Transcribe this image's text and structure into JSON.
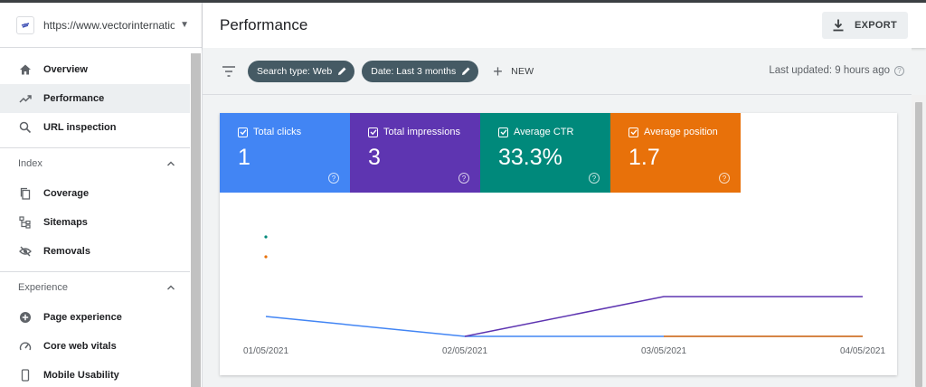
{
  "property": {
    "url": "https://www.vectorinternatio..."
  },
  "sidebar": {
    "items": [
      {
        "label": "Overview",
        "icon": "home-icon"
      },
      {
        "label": "Performance",
        "icon": "trending-up-icon"
      },
      {
        "label": "URL inspection",
        "icon": "search-icon"
      }
    ],
    "index_section": "Index",
    "index_items": [
      {
        "label": "Coverage",
        "icon": "copy-icon"
      },
      {
        "label": "Sitemaps",
        "icon": "sitemap-icon"
      },
      {
        "label": "Removals",
        "icon": "eye-off-icon"
      }
    ],
    "experience_section": "Experience",
    "experience_items": [
      {
        "label": "Page experience",
        "icon": "add-circle-icon"
      },
      {
        "label": "Core web vitals",
        "icon": "speed-icon"
      },
      {
        "label": "Mobile Usability",
        "icon": "phone-icon"
      }
    ]
  },
  "header": {
    "title": "Performance",
    "export_label": "EXPORT"
  },
  "filters": {
    "chips": [
      "Search type: Web",
      "Date: Last 3 months"
    ],
    "new_label": "NEW",
    "last_updated": "Last updated: 9 hours ago"
  },
  "metrics": [
    {
      "label": "Total clicks",
      "value": "1",
      "color": "#4285f4"
    },
    {
      "label": "Total impressions",
      "value": "3",
      "color": "#5e35b1"
    },
    {
      "label": "Average CTR",
      "value": "33.3%",
      "color": "#00897b"
    },
    {
      "label": "Average position",
      "value": "1.7",
      "color": "#e8710a"
    }
  ],
  "chart_data": {
    "type": "line",
    "categories": [
      "01/05/2021",
      "02/05/2021",
      "03/05/2021",
      "04/05/2021"
    ],
    "series": [
      {
        "metric": "Total clicks",
        "color": "#4285f4",
        "values": [
          1,
          0,
          0,
          0
        ]
      },
      {
        "metric": "Total impressions",
        "color": "#5e35b1",
        "values": [
          null,
          0,
          1,
          1
        ]
      },
      {
        "metric": "Average CTR",
        "color": "#00897b",
        "values": [
          100,
          null,
          null,
          null
        ]
      },
      {
        "metric": "Average position",
        "color": "#e8710a",
        "values": [
          1,
          null,
          2,
          2
        ]
      }
    ]
  }
}
